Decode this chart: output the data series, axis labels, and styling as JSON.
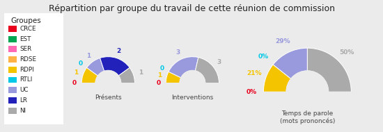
{
  "title": "Répartition par groupe du travail de cette réunion de commission",
  "background_color": "#ebebeb",
  "groups": [
    "CRCE",
    "EST",
    "SER",
    "RDSE",
    "RDPI",
    "RTLI",
    "UC",
    "LR",
    "NI"
  ],
  "colors": [
    "#e8001c",
    "#00a651",
    "#ff69b4",
    "#ffb347",
    "#f5c400",
    "#00c8e6",
    "#9999dd",
    "#2222bb",
    "#aaaaaa"
  ],
  "charts": [
    {
      "title": "Présents",
      "values": [
        0,
        0,
        0,
        0,
        1,
        0,
        1,
        2,
        1
      ],
      "zero_labels": {
        "CRCE": "0",
        "RTLI": "0"
      }
    },
    {
      "title": "Interventions",
      "values": [
        0,
        0,
        0,
        0,
        1,
        0,
        3,
        0,
        3
      ],
      "zero_labels": {
        "CRCE": "0",
        "RTLI": "0"
      }
    },
    {
      "title": "Temps de parole\n(mots prononcés)",
      "values": [
        0,
        0,
        0,
        0,
        21,
        0,
        28,
        0,
        49
      ],
      "zero_labels": {
        "CRCE": "0%",
        "RTLI": "0%"
      }
    }
  ],
  "legend_title": "Groupes",
  "outer_r": 1.0,
  "inner_r": 0.48,
  "label_r": 1.28
}
